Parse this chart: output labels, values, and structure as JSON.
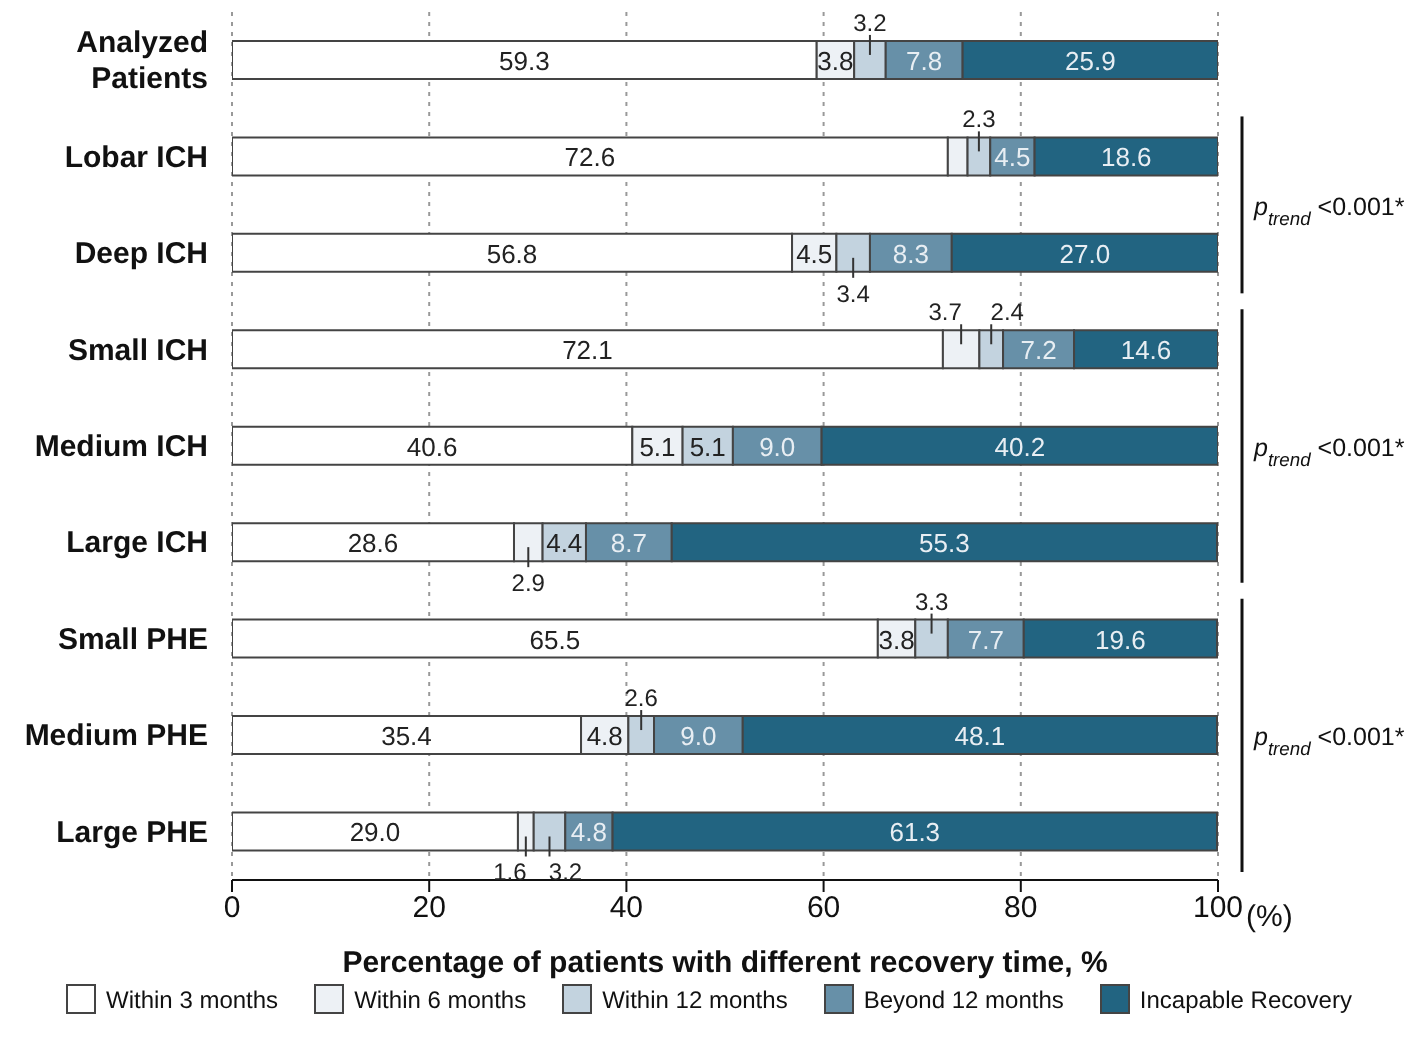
{
  "chart_data": {
    "type": "bar",
    "orientation": "horizontal",
    "stacked": true,
    "xlabel": "Percentage of patients with different recovery time, %",
    "categories": [
      "Analyzed Patients",
      "Lobar ICH",
      "Deep ICH",
      "Small ICH",
      "Medium ICH",
      "Large ICH",
      "Small PHE",
      "Medium PHE",
      "Large PHE"
    ],
    "series": [
      {
        "name": "Within 3 months",
        "color": "#ffffff",
        "values": [
          59.3,
          72.6,
          56.8,
          72.1,
          40.6,
          28.6,
          65.5,
          35.4,
          29.0
        ],
        "value_labels": [
          "59.3",
          "72.6",
          "56.8",
          "72.1",
          "40.6",
          "28.6",
          "65.5",
          "35.4",
          "29.0"
        ]
      },
      {
        "name": "Within 6 months",
        "color": "#edf1f5",
        "values": [
          3.8,
          2.0,
          4.5,
          3.7,
          5.1,
          2.9,
          3.8,
          4.8,
          1.6
        ],
        "value_labels": [
          "3.8",
          null,
          "4.5",
          "3.7",
          "5.1",
          "2.9",
          "3.8",
          "4.8",
          "1.6"
        ]
      },
      {
        "name": "Within 12 months",
        "color": "#c3d3df",
        "values": [
          3.2,
          2.3,
          3.4,
          2.4,
          5.1,
          4.4,
          3.3,
          2.6,
          3.2
        ],
        "value_labels": [
          "3.2",
          "2.3",
          "3.4",
          "2.4",
          "5.1",
          "4.4",
          "3.3",
          "2.6",
          "3.2"
        ]
      },
      {
        "name": "Beyond 12 months",
        "color": "#6790a8",
        "values": [
          7.8,
          4.5,
          8.3,
          7.2,
          9.0,
          8.7,
          7.7,
          9.0,
          4.8
        ],
        "value_labels": [
          "7.8",
          "4.5",
          "8.3",
          "7.2",
          "9.0",
          "8.7",
          "7.7",
          "9.0",
          "4.8"
        ]
      },
      {
        "name": "Incapable Recovery",
        "color": "#226481",
        "values": [
          25.9,
          18.6,
          27.0,
          14.6,
          40.2,
          55.3,
          19.6,
          48.1,
          61.3
        ],
        "value_labels": [
          "25.9",
          "18.6",
          "27.0",
          "14.6",
          "40.2",
          "55.3",
          "19.6",
          "48.1",
          "61.3"
        ]
      }
    ],
    "xlim": [
      0,
      100
    ],
    "xticks": [
      0,
      20,
      40,
      60,
      80,
      100
    ],
    "grid": "x",
    "legend": "bottom",
    "annotations": [
      "p$_{trend}$ <0.001*",
      "p$_{trend}$ <0.001*",
      "p$_{trend}$ <0.001*",
      "(%)"
    ]
  }
}
